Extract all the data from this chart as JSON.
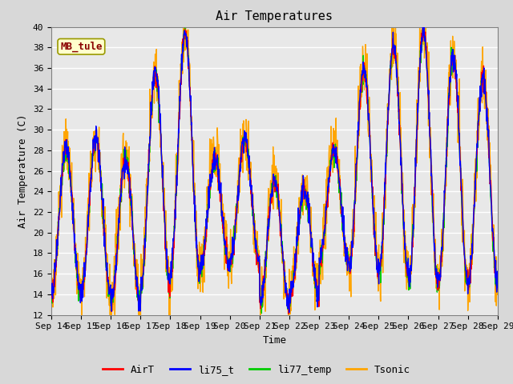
{
  "title": "Air Temperatures",
  "xlabel": "Time",
  "ylabel": "Air Temperature (C)",
  "ylim": [
    12,
    40
  ],
  "x_tick_labels": [
    "Sep 14",
    "Sep 15",
    "Sep 16",
    "Sep 17",
    "Sep 18",
    "Sep 19",
    "Sep 20",
    "Sep 21",
    "Sep 22",
    "Sep 23",
    "Sep 24",
    "Sep 25",
    "Sep 26",
    "Sep 27",
    "Sep 28",
    "Sep 29"
  ],
  "station_label": "MB_tule",
  "station_label_color": "#8B0000",
  "station_box_facecolor": "#FFFFCC",
  "station_box_edgecolor": "#999900",
  "plot_bg_color": "#E8E8E8",
  "fig_bg_color": "#D8D8D8",
  "grid_color": "white",
  "series_colors": {
    "AirT": "#FF0000",
    "li75_t": "#0000FF",
    "li77_temp": "#00CC00",
    "Tsonic": "#FFA500"
  },
  "line_width": 1.0,
  "font_family": "monospace",
  "font_size_title": 11,
  "font_size_axis": 8,
  "font_size_label": 9,
  "figsize": [
    6.4,
    4.8
  ],
  "dpi": 100
}
